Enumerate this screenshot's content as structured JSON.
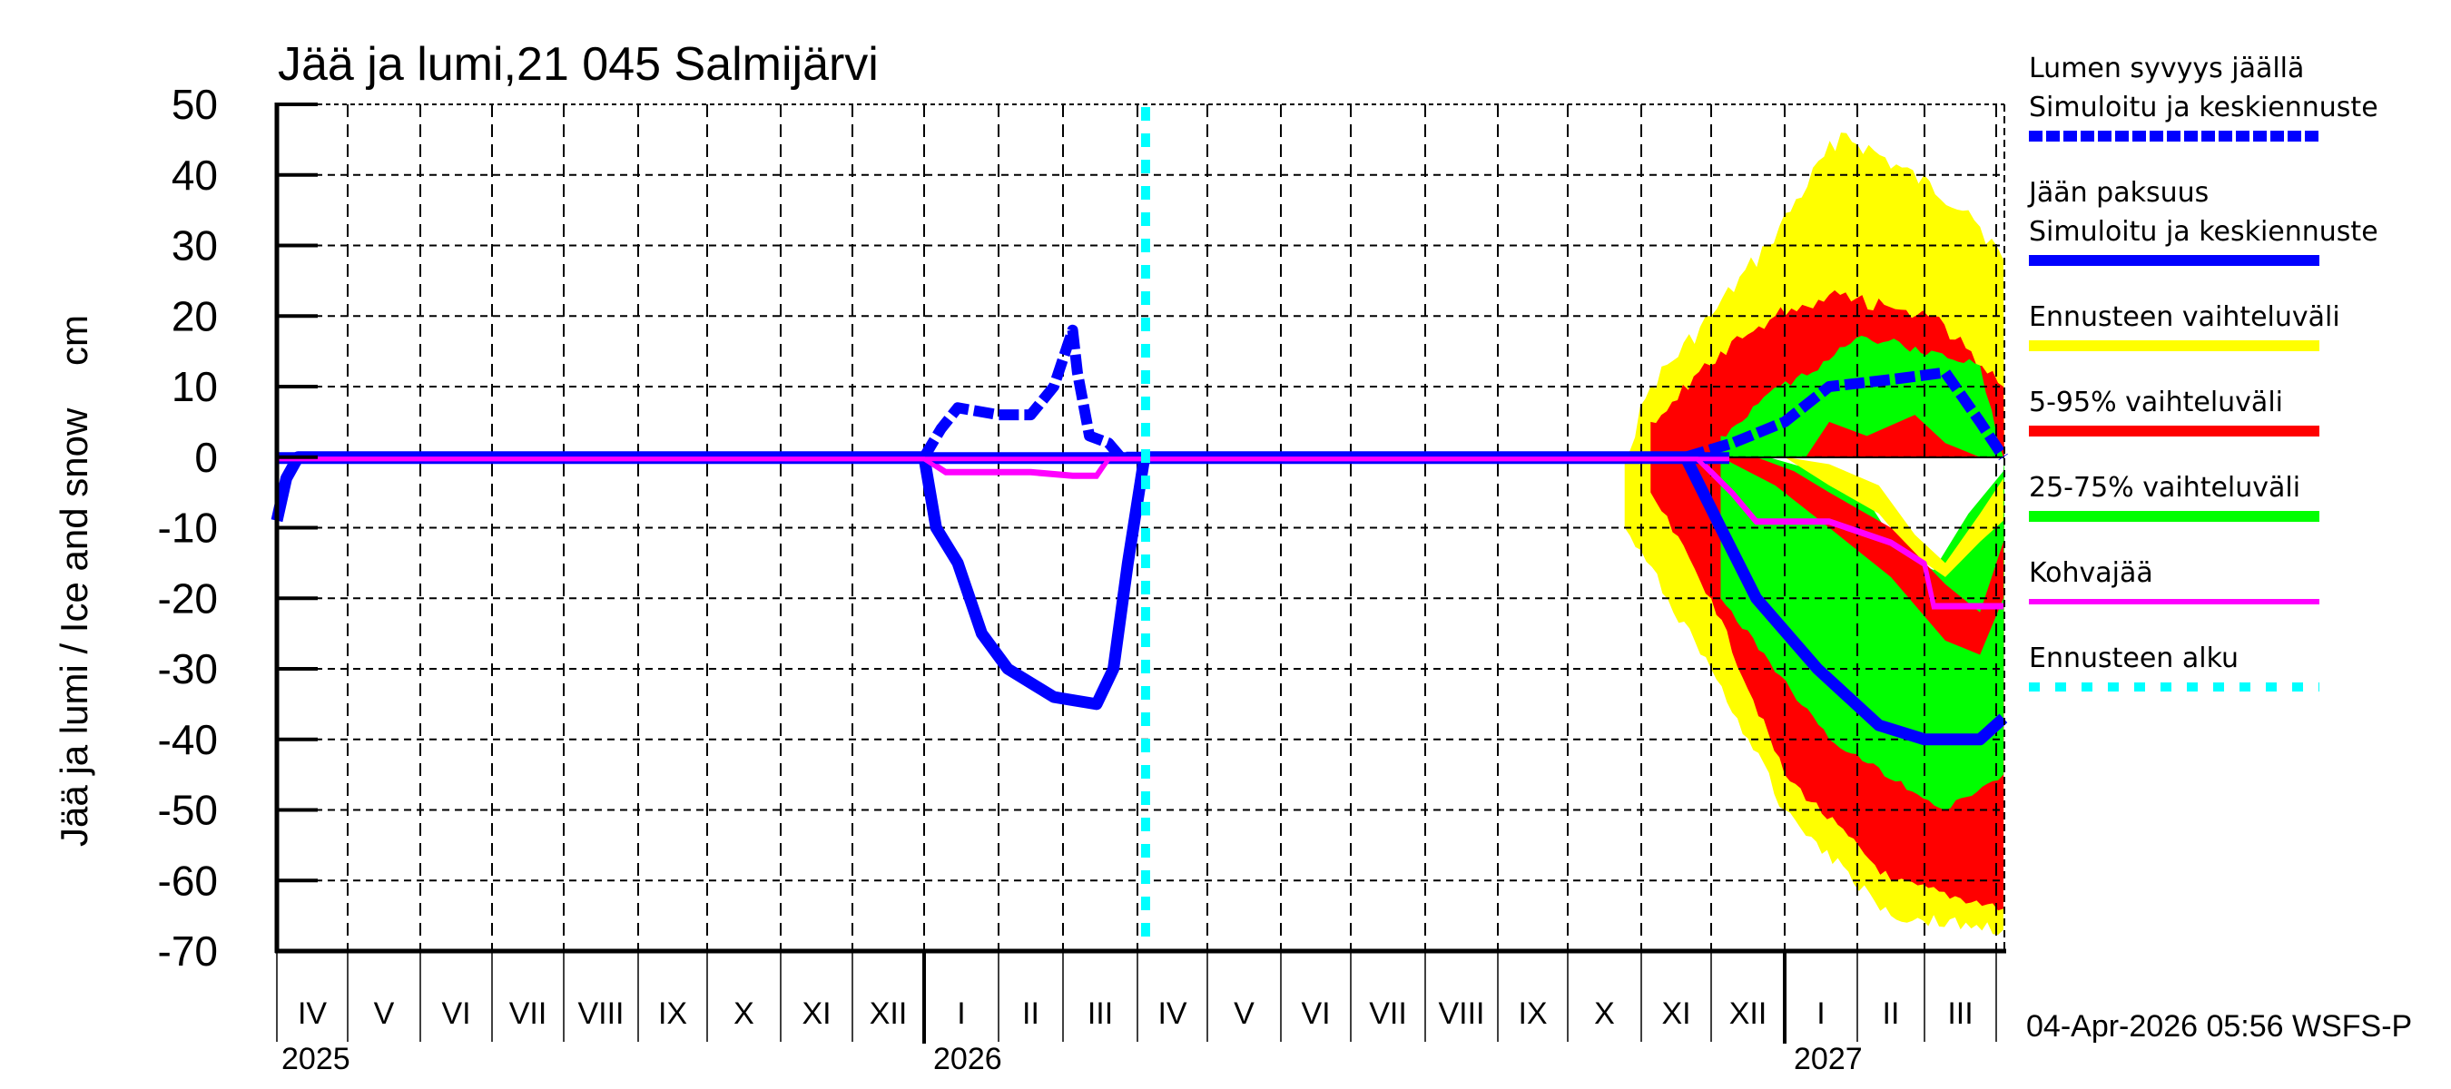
{
  "chart_data": {
    "type": "line",
    "title": "Jää ja lumi,21 045 Salmijärvi",
    "ylabel": "Jää ja lumi / Ice and snow    cm",
    "xlabel": "",
    "ylim": [
      -70,
      50
    ],
    "yticks": [
      50,
      40,
      30,
      20,
      10,
      0,
      -10,
      -20,
      -30,
      -40,
      -50,
      -60,
      -70
    ],
    "grid": true,
    "x_months": [
      "IV",
      "V",
      "VI",
      "VII",
      "VIII",
      "IX",
      "X",
      "XI",
      "XII",
      "I",
      "II",
      "III",
      "IV",
      "V",
      "VI",
      "VII",
      "VIII",
      "IX",
      "X",
      "XI",
      "XII",
      "I",
      "II",
      "III"
    ],
    "x_years": [
      "2025",
      "2026",
      "2027"
    ],
    "x_range": [
      "2025-04-01",
      "2027-04-04"
    ],
    "forecast_start": "2026-04-04",
    "series": [
      {
        "name": "Lumen syvyys jäällä – Simuloitu ja keskiennuste",
        "style": "dashed",
        "color": "#0000ff",
        "x": [
          "2026-01-01",
          "2026-01-08",
          "2026-01-15",
          "2026-02-01",
          "2026-02-15",
          "2026-02-25",
          "2026-03-05",
          "2026-03-07",
          "2026-03-12",
          "2026-03-20",
          "2026-03-25",
          "2026-11-20",
          "2026-12-10",
          "2027-01-01",
          "2027-01-20",
          "2027-02-15",
          "2027-03-10",
          "2027-03-25",
          "2027-04-04"
        ],
        "values": [
          0,
          4,
          7,
          6,
          6,
          10,
          18,
          12,
          3,
          2,
          0,
          0,
          2,
          5,
          10,
          11,
          12,
          5,
          0
        ]
      },
      {
        "name": "Jään paksuus – Simuloitu ja keskiennuste",
        "style": "solid",
        "color": "#0000ff",
        "x": [
          "2025-04-01",
          "2025-04-05",
          "2025-04-10",
          "2026-01-01",
          "2026-01-06",
          "2026-01-15",
          "2026-01-25",
          "2026-02-05",
          "2026-02-25",
          "2026-03-15",
          "2026-03-22",
          "2026-03-28",
          "2026-04-04",
          "2026-11-20",
          "2026-12-05",
          "2026-12-20",
          "2027-01-15",
          "2027-02-10",
          "2027-03-01",
          "2027-03-25",
          "2027-04-04"
        ],
        "values": [
          -9,
          -3,
          0,
          0,
          -10,
          -15,
          -25,
          -30,
          -34,
          -35,
          -30,
          -15,
          0,
          0,
          -10,
          -20,
          -30,
          -38,
          -40,
          -40,
          -37
        ]
      },
      {
        "name": "Kohvajää",
        "style": "solid",
        "color": "#ff00ff",
        "x": [
          "2025-04-01",
          "2026-01-01",
          "2026-01-10",
          "2026-02-15",
          "2026-03-05",
          "2026-03-15",
          "2026-03-20",
          "2026-11-25",
          "2026-12-10",
          "2026-12-20",
          "2027-01-20",
          "2027-02-15",
          "2027-03-01",
          "2027-03-05",
          "2027-04-04"
        ],
        "values": [
          0,
          0,
          -2,
          -2,
          -2.5,
          -2.5,
          0,
          0,
          -5,
          -9,
          -9,
          -12,
          -15,
          -21,
          -21
        ]
      }
    ],
    "bands": [
      {
        "name": "Ennusteen vaihteluväli",
        "color": "#ffff00",
        "upper": [
          [
            "2026-10-25",
            0
          ],
          [
            "2026-11-05",
            10
          ],
          [
            "2026-12-01",
            20
          ],
          [
            "2026-12-25",
            30
          ],
          [
            "2027-01-25",
            46
          ],
          [
            "2027-03-20",
            35
          ],
          [
            "2027-04-04",
            28
          ]
        ],
        "lower": [
          [
            "2026-10-25",
            -10
          ],
          [
            "2026-12-01",
            -30
          ],
          [
            "2027-01-01",
            -50
          ],
          [
            "2027-02-15",
            -65
          ],
          [
            "2027-04-04",
            -67
          ]
        ]
      },
      {
        "name": "5-95% vaihteluväli",
        "color": "#ff0000",
        "upper": [
          [
            "2026-11-05",
            5
          ],
          [
            "2026-12-05",
            15
          ],
          [
            "2026-12-28",
            20
          ],
          [
            "2027-01-20",
            23
          ],
          [
            "2027-03-05",
            20
          ],
          [
            "2027-04-04",
            10
          ]
        ],
        "lower": [
          [
            "2026-11-05",
            -5
          ],
          [
            "2026-12-01",
            -20
          ],
          [
            "2027-01-01",
            -45
          ],
          [
            "2027-02-15",
            -60
          ],
          [
            "2027-04-04",
            -64
          ]
        ]
      },
      {
        "name": "25-75% vaihteluväli",
        "color": "#00ff00",
        "upper": [
          [
            "2026-12-05",
            3
          ],
          [
            "2026-12-30",
            10
          ],
          [
            "2027-02-05",
            17
          ],
          [
            "2027-03-25",
            13
          ],
          [
            "2027-04-04",
            0
          ]
        ],
        "lower": [
          [
            "2026-12-05",
            -20
          ],
          [
            "2027-01-20",
            -40
          ],
          [
            "2027-03-10",
            -50
          ],
          [
            "2027-04-04",
            -45
          ]
        ]
      }
    ],
    "legend_position": "right"
  },
  "legend": {
    "items": [
      {
        "line1": "Lumen syvyys jäällä",
        "line2": "Simuloitu ja keskiennuste",
        "color": "#0000ff",
        "style": "dashed"
      },
      {
        "line1": "Jään paksuus",
        "line2": "Simuloitu ja keskiennuste",
        "color": "#0000ff",
        "style": "solid"
      },
      {
        "line1": "Ennusteen vaihteluväli",
        "color": "#ffff00",
        "style": "solid"
      },
      {
        "line1": "5-95% vaihteluväli",
        "color": "#ff0000",
        "style": "solid"
      },
      {
        "line1": "25-75% vaihteluväli",
        "color": "#00ff00",
        "style": "solid"
      },
      {
        "line1": "Kohvajää",
        "color": "#ff00ff",
        "style": "solid"
      },
      {
        "line1": "Ennusteen alku",
        "color": "#00ffff",
        "style": "dotted"
      }
    ]
  },
  "footer": {
    "timestamp": "04-Apr-2026 05:56 WSFS-P"
  }
}
